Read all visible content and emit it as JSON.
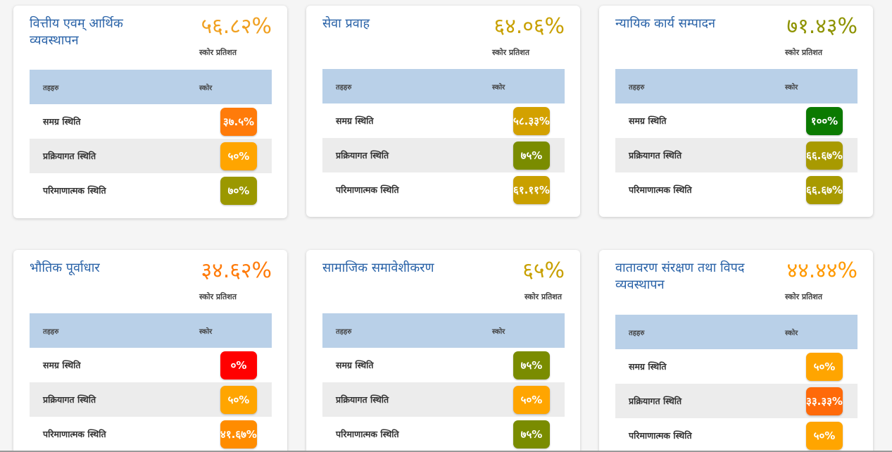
{
  "table_headers": {
    "col1": "तहहरु",
    "col2": "स्कोर"
  },
  "subtitle": "स्कोर प्रतिशत",
  "cards": [
    {
      "title": "वित्तीय एवम् आर्थिक व्यवस्थापन",
      "pct": "५६.८२%",
      "pct_color": "#f0a020",
      "rows": [
        {
          "label": "समग्र स्थिति",
          "score": "३७.५%",
          "color": "#ff7b0a"
        },
        {
          "label": "प्रक्रियागत स्थिति",
          "score": "५०%",
          "color": "#ffa500"
        },
        {
          "label": "परिमाणात्मक स्थिति",
          "score": "७०%",
          "color": "#9b9800"
        }
      ]
    },
    {
      "title": "सेवा प्रवाह",
      "pct": "६४.०६%",
      "pct_color": "#c8a000",
      "rows": [
        {
          "label": "समग्र स्थिति",
          "score": "५८.३३%",
          "color": "#d3a100"
        },
        {
          "label": "प्रक्रियागत स्थिति",
          "score": "७५%",
          "color": "#7a8c00"
        },
        {
          "label": "परिमाणात्मक स्थिति",
          "score": "६१.११%",
          "color": "#c9a000"
        }
      ]
    },
    {
      "title": "न्यायिक कार्य सम्पादन",
      "pct": "७१.४३%",
      "pct_color": "#8e9300",
      "rows": [
        {
          "label": "समग्र स्थिति",
          "score": "१००%",
          "color": "#0b7a00"
        },
        {
          "label": "प्रक्रियागत स्थिति",
          "score": "६६.६७%",
          "color": "#a89a00"
        },
        {
          "label": "परिमाणात्मक स्थिति",
          "score": "६६.६७%",
          "color": "#a89a00"
        }
      ]
    },
    {
      "title": "भौतिक पूर्वाधार",
      "pct": "३४.६२%",
      "pct_color": "#ff7b0a",
      "rows": [
        {
          "label": "समग्र स्थिति",
          "score": "०%",
          "color": "#ff0000"
        },
        {
          "label": "प्रक्रियागत स्थिति",
          "score": "५०%",
          "color": "#ffa500"
        },
        {
          "label": "परिमाणात्मक स्थिति",
          "score": "४१.६७%",
          "color": "#ff8c00"
        }
      ]
    },
    {
      "title": "सामाजिक समावेशीकरण",
      "pct": "६५%",
      "pct_color": "#c8a000",
      "rows": [
        {
          "label": "समग्र स्थिति",
          "score": "७५%",
          "color": "#7a8c00"
        },
        {
          "label": "प्रक्रियागत स्थिति",
          "score": "५०%",
          "color": "#ffa500"
        },
        {
          "label": "परिमाणात्मक स्थिति",
          "score": "७५%",
          "color": "#7a8c00"
        }
      ]
    },
    {
      "title": "वातावरण संरक्षण तथा विपद व्यवस्थापन",
      "pct": "४४.४४%",
      "pct_color": "#ff9900",
      "rows": [
        {
          "label": "समग्र स्थिति",
          "score": "५०%",
          "color": "#ffa500"
        },
        {
          "label": "प्रक्रियागत स्थिति",
          "score": "३३.३३%",
          "color": "#ff6a0a"
        },
        {
          "label": "परिमाणात्मक स्थिति",
          "score": "५०%",
          "color": "#ffa500"
        }
      ]
    }
  ]
}
